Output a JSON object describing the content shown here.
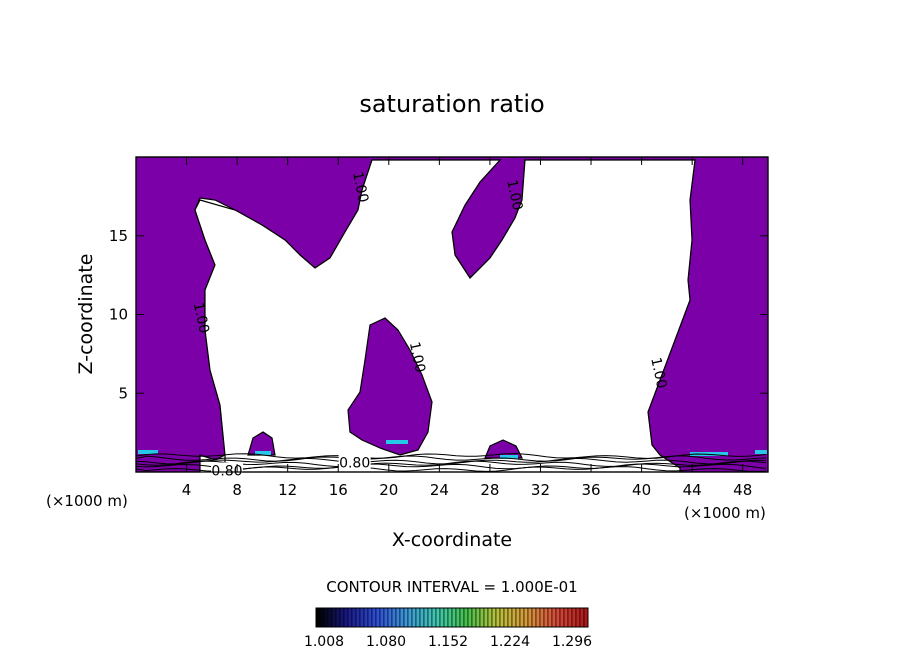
{
  "chart_data": {
    "type": "heatmap",
    "title": "saturation ratio",
    "xlabel": "X-coordinate",
    "ylabel": "Z-coordinate",
    "x_unit_left": "(×1000 m)",
    "x_unit_right": "(×1000 m)",
    "xlim": [
      0,
      50
    ],
    "ylim": [
      0,
      20
    ],
    "x_ticks": [
      4,
      8,
      12,
      16,
      20,
      24,
      28,
      32,
      36,
      40,
      44,
      48
    ],
    "y_ticks": [
      5,
      10,
      15
    ],
    "contour_labels": [
      {
        "text": "1.00",
        "x": 17.8,
        "y": 18.1
      },
      {
        "text": "1.00",
        "x": 30.0,
        "y": 17.6
      },
      {
        "text": "1.00",
        "x": 5.2,
        "y": 9.8
      },
      {
        "text": "1.00",
        "x": 22.3,
        "y": 7.3
      },
      {
        "text": "1.00",
        "x": 41.4,
        "y": 6.3
      },
      {
        "text": "0.80",
        "x": 7.2,
        "y": 0.1
      },
      {
        "text": "0.80",
        "x": 17.3,
        "y": 0.6
      }
    ],
    "contour_interval": "CONTOUR INTERVAL = 1.000E-01",
    "colorbar": {
      "tick_labels": [
        "1.008",
        "1.080",
        "1.152",
        "1.224",
        "1.296"
      ],
      "colors": [
        "#000000",
        "#1a1a8c",
        "#2f4fd8",
        "#3b9ad8",
        "#3ec9b0",
        "#44c24a",
        "#b8c23a",
        "#d89a3a",
        "#d84a3a",
        "#b01818"
      ]
    },
    "fill_color": "#7b00a8",
    "supersat_color": "#26c8e8"
  }
}
